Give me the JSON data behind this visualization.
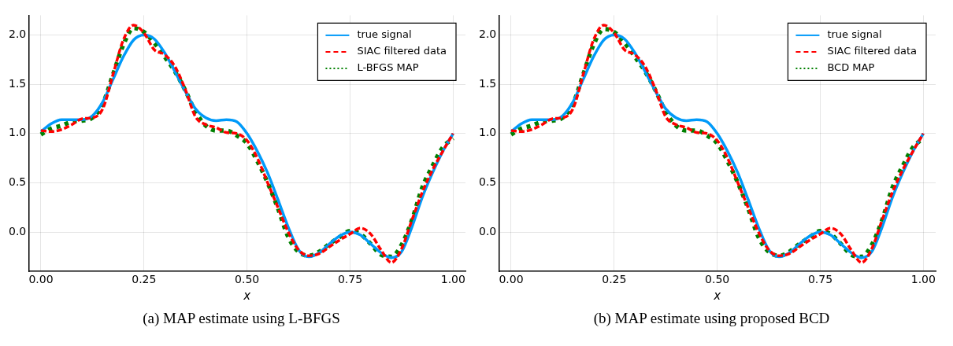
{
  "chart_data": [
    {
      "type": "line",
      "xlabel": "x",
      "annotations": [
        "(a) MAP estimate using L-BFGS"
      ],
      "grid": true,
      "legend": "top right",
      "marker": "none",
      "x": [
        0,
        0.025,
        0.05,
        0.075,
        0.1,
        0.125,
        0.15,
        0.175,
        0.2,
        0.225,
        0.25,
        0.275,
        0.3,
        0.325,
        0.35,
        0.375,
        0.4,
        0.425,
        0.45,
        0.475,
        0.5,
        0.525,
        0.55,
        0.575,
        0.6,
        0.625,
        0.65,
        0.675,
        0.7,
        0.725,
        0.75,
        0.775,
        0.8,
        0.825,
        0.85,
        0.875,
        0.9,
        0.925,
        0.95,
        0.975,
        1.0
      ],
      "xlim": [
        -0.03,
        1.03
      ],
      "xticks": [
        {
          "value": 0,
          "label": "0.00"
        },
        {
          "value": 0.25,
          "label": "0.25"
        },
        {
          "value": 0.5,
          "label": "0.50"
        },
        {
          "value": 0.75,
          "label": "0.75"
        },
        {
          "value": 1,
          "label": "1.00"
        }
      ],
      "ylim": [
        -0.4,
        2.2
      ],
      "yticks": [
        {
          "value": 0,
          "label": "0.0"
        },
        {
          "value": 0.5,
          "label": "0.5"
        },
        {
          "value": 1,
          "label": "1.0"
        },
        {
          "value": 1.5,
          "label": "1.5"
        },
        {
          "value": 2,
          "label": "2.0"
        }
      ],
      "series": [
        {
          "name": "true signal",
          "color": "#009af9",
          "line_style": "solid",
          "values": [
            1.02,
            1.1,
            1.14,
            1.14,
            1.14,
            1.18,
            1.32,
            1.55,
            1.78,
            1.95,
            2.0,
            1.96,
            1.82,
            1.63,
            1.43,
            1.25,
            1.16,
            1.13,
            1.14,
            1.12,
            1.0,
            0.82,
            0.6,
            0.33,
            0.05,
            -0.18,
            -0.25,
            -0.21,
            -0.12,
            -0.04,
            0.0,
            -0.03,
            -0.12,
            -0.21,
            -0.26,
            -0.2,
            0.05,
            0.35,
            0.6,
            0.82,
            1.0
          ]
        },
        {
          "name": "SIAC filtered data",
          "color": "#ff0000",
          "line_style": "dashed",
          "values": [
            1.03,
            1.02,
            1.04,
            1.09,
            1.15,
            1.16,
            1.25,
            1.6,
            1.95,
            2.1,
            2.02,
            1.85,
            1.8,
            1.68,
            1.45,
            1.17,
            1.09,
            1.06,
            1.01,
            1.0,
            0.93,
            0.75,
            0.5,
            0.25,
            0.0,
            -0.18,
            -0.24,
            -0.22,
            -0.15,
            -0.08,
            -0.02,
            0.04,
            -0.02,
            -0.18,
            -0.31,
            -0.17,
            0.12,
            0.4,
            0.63,
            0.82,
            1.0
          ]
        },
        {
          "name": "L-BFGS MAP",
          "color": "#008000",
          "line_style": "dotted",
          "values": [
            0.99,
            1.05,
            1.08,
            1.12,
            1.13,
            1.16,
            1.3,
            1.6,
            1.9,
            2.07,
            2.03,
            1.92,
            1.78,
            1.63,
            1.44,
            1.22,
            1.08,
            1.03,
            1.03,
            0.98,
            0.9,
            0.72,
            0.5,
            0.24,
            -0.05,
            -0.2,
            -0.24,
            -0.2,
            -0.12,
            -0.05,
            0.01,
            -0.02,
            -0.12,
            -0.23,
            -0.25,
            -0.13,
            0.12,
            0.45,
            0.67,
            0.86,
            0.95
          ]
        }
      ]
    },
    {
      "type": "line",
      "xlabel": "x",
      "annotations": [
        "(b) MAP estimate using proposed BCD"
      ],
      "grid": true,
      "legend": "top right",
      "marker": "none",
      "x": [
        0,
        0.025,
        0.05,
        0.075,
        0.1,
        0.125,
        0.15,
        0.175,
        0.2,
        0.225,
        0.25,
        0.275,
        0.3,
        0.325,
        0.35,
        0.375,
        0.4,
        0.425,
        0.45,
        0.475,
        0.5,
        0.525,
        0.55,
        0.575,
        0.6,
        0.625,
        0.65,
        0.675,
        0.7,
        0.725,
        0.75,
        0.775,
        0.8,
        0.825,
        0.85,
        0.875,
        0.9,
        0.925,
        0.95,
        0.975,
        1.0
      ],
      "xlim": [
        -0.03,
        1.03
      ],
      "xticks": [
        {
          "value": 0,
          "label": "0.00"
        },
        {
          "value": 0.25,
          "label": "0.25"
        },
        {
          "value": 0.5,
          "label": "0.50"
        },
        {
          "value": 0.75,
          "label": "0.75"
        },
        {
          "value": 1,
          "label": "1.00"
        }
      ],
      "ylim": [
        -0.4,
        2.2
      ],
      "yticks": [
        {
          "value": 0,
          "label": "0.0"
        },
        {
          "value": 0.5,
          "label": "0.5"
        },
        {
          "value": 1,
          "label": "1.0"
        },
        {
          "value": 1.5,
          "label": "1.5"
        },
        {
          "value": 2,
          "label": "2.0"
        }
      ],
      "series": [
        {
          "name": "true signal",
          "color": "#009af9",
          "line_style": "solid",
          "values": [
            1.02,
            1.1,
            1.14,
            1.14,
            1.14,
            1.18,
            1.32,
            1.55,
            1.78,
            1.95,
            2.0,
            1.96,
            1.82,
            1.63,
            1.43,
            1.25,
            1.16,
            1.13,
            1.14,
            1.12,
            1.0,
            0.82,
            0.6,
            0.33,
            0.05,
            -0.18,
            -0.25,
            -0.21,
            -0.12,
            -0.04,
            0.0,
            -0.03,
            -0.12,
            -0.21,
            -0.26,
            -0.2,
            0.05,
            0.35,
            0.6,
            0.82,
            1.0
          ]
        },
        {
          "name": "SIAC filtered data",
          "color": "#ff0000",
          "line_style": "dashed",
          "values": [
            1.03,
            1.02,
            1.04,
            1.09,
            1.15,
            1.16,
            1.25,
            1.6,
            1.95,
            2.1,
            2.02,
            1.85,
            1.8,
            1.68,
            1.45,
            1.17,
            1.09,
            1.06,
            1.01,
            1.0,
            0.93,
            0.75,
            0.5,
            0.25,
            0.0,
            -0.18,
            -0.24,
            -0.22,
            -0.15,
            -0.08,
            -0.02,
            0.04,
            -0.02,
            -0.18,
            -0.31,
            -0.17,
            0.12,
            0.4,
            0.63,
            0.82,
            1.0
          ]
        },
        {
          "name": "BCD MAP",
          "color": "#008000",
          "line_style": "dotted",
          "values": [
            0.99,
            1.05,
            1.08,
            1.12,
            1.13,
            1.16,
            1.3,
            1.6,
            1.9,
            2.06,
            2.03,
            1.92,
            1.78,
            1.63,
            1.44,
            1.22,
            1.08,
            1.03,
            1.03,
            0.98,
            0.9,
            0.72,
            0.5,
            0.24,
            -0.05,
            -0.2,
            -0.24,
            -0.2,
            -0.12,
            -0.05,
            0.01,
            -0.02,
            -0.12,
            -0.23,
            -0.25,
            -0.13,
            0.12,
            0.45,
            0.67,
            0.86,
            0.95
          ]
        }
      ]
    }
  ]
}
